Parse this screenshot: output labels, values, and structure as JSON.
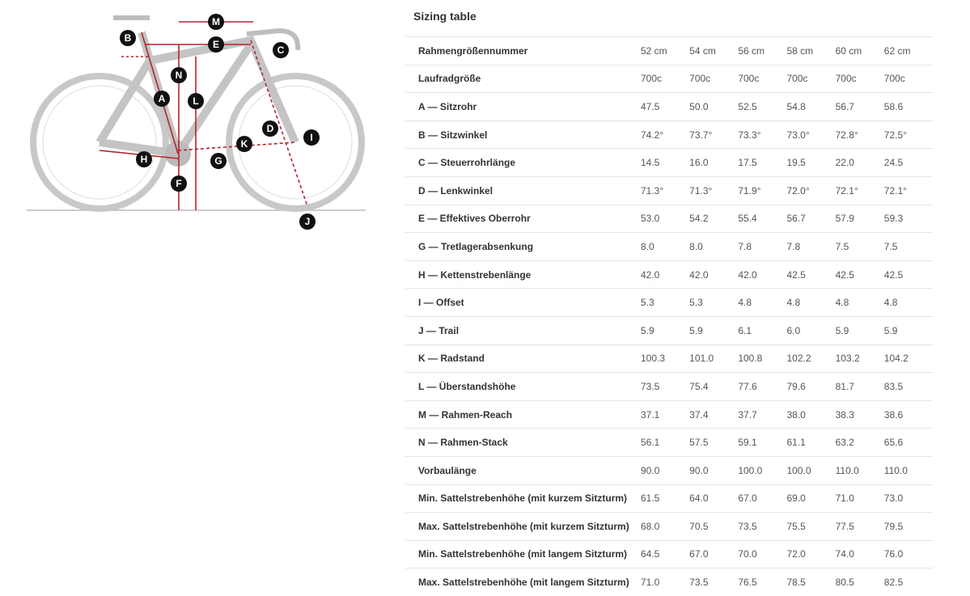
{
  "title": "Sizing table",
  "diagram_labels": [
    "M",
    "B",
    "E",
    "C",
    "N",
    "A",
    "L",
    "D",
    "I",
    "K",
    "H",
    "G",
    "F",
    "J"
  ],
  "colors": {
    "accent": "#b3242e",
    "bike": "#c8c8c8",
    "marker": "#111111"
  },
  "rows": [
    {
      "label": "Rahmengrößennummer",
      "values": [
        "52 cm",
        "54 cm",
        "56 cm",
        "58 cm",
        "60 cm",
        "62 cm"
      ]
    },
    {
      "label": "Laufradgröße",
      "values": [
        "700c",
        "700c",
        "700c",
        "700c",
        "700c",
        "700c"
      ]
    },
    {
      "label": "A — Sitzrohr",
      "values": [
        "47.5",
        "50.0",
        "52.5",
        "54.8",
        "56.7",
        "58.6"
      ]
    },
    {
      "label": "B — Sitzwinkel",
      "values": [
        "74.2°",
        "73.7°",
        "73.3°",
        "73.0°",
        "72.8°",
        "72.5°"
      ]
    },
    {
      "label": "C — Steuerrohrlänge",
      "values": [
        "14.5",
        "16.0",
        "17.5",
        "19.5",
        "22.0",
        "24.5"
      ]
    },
    {
      "label": "D — Lenkwinkel",
      "values": [
        "71.3°",
        "71.3°",
        "71.9°",
        "72.0°",
        "72.1°",
        "72.1°"
      ]
    },
    {
      "label": "E — Effektives Oberrohr",
      "values": [
        "53.0",
        "54.2",
        "55.4",
        "56.7",
        "57.9",
        "59.3"
      ]
    },
    {
      "label": "G — Tretlagerabsenkung",
      "values": [
        "8.0",
        "8.0",
        "7.8",
        "7.8",
        "7.5",
        "7.5"
      ]
    },
    {
      "label": "H — Kettenstrebenlänge",
      "values": [
        "42.0",
        "42.0",
        "42.0",
        "42.5",
        "42.5",
        "42.5"
      ]
    },
    {
      "label": "I — Offset",
      "values": [
        "5.3",
        "5.3",
        "4.8",
        "4.8",
        "4.8",
        "4.8"
      ]
    },
    {
      "label": "J — Trail",
      "values": [
        "5.9",
        "5.9",
        "6.1",
        "6.0",
        "5.9",
        "5.9"
      ]
    },
    {
      "label": "K — Radstand",
      "values": [
        "100.3",
        "101.0",
        "100.8",
        "102.2",
        "103.2",
        "104.2"
      ]
    },
    {
      "label": "L — Überstandshöhe",
      "values": [
        "73.5",
        "75.4",
        "77.6",
        "79.6",
        "81.7",
        "83.5"
      ]
    },
    {
      "label": "M — Rahmen-Reach",
      "values": [
        "37.1",
        "37.4",
        "37.7",
        "38.0",
        "38.3",
        "38.6"
      ]
    },
    {
      "label": "N — Rahmen-Stack",
      "values": [
        "56.1",
        "57.5",
        "59.1",
        "61.1",
        "63.2",
        "65.6"
      ]
    },
    {
      "label": "Vorbaulänge",
      "values": [
        "90.0",
        "90.0",
        "100.0",
        "100.0",
        "110.0",
        "110.0"
      ]
    },
    {
      "label": "Min. Sattelstrebenhöhe (mit kurzem Sitzturm)",
      "values": [
        "61.5",
        "64.0",
        "67.0",
        "69.0",
        "71.0",
        "73.0"
      ]
    },
    {
      "label": "Max. Sattelstrebenhöhe (mit kurzem Sitzturm)",
      "values": [
        "68.0",
        "70.5",
        "73.5",
        "75.5",
        "77.5",
        "79.5"
      ]
    },
    {
      "label": "Min. Sattelstrebenhöhe (mit langem Sitzturm)",
      "values": [
        "64.5",
        "67.0",
        "70.0",
        "72.0",
        "74.0",
        "76.0"
      ]
    },
    {
      "label": "Max. Sattelstrebenhöhe (mit langem Sitzturm)",
      "values": [
        "71.0",
        "73.5",
        "76.5",
        "78.5",
        "80.5",
        "82.5"
      ]
    }
  ]
}
